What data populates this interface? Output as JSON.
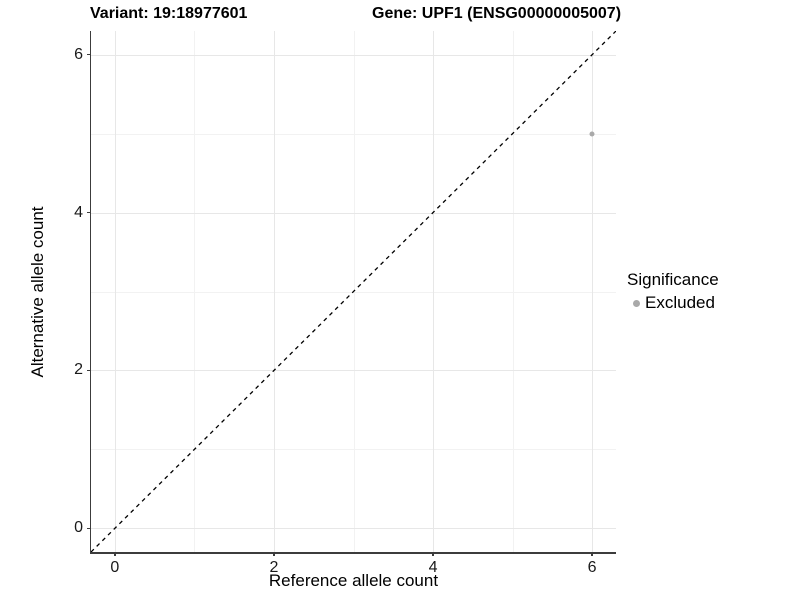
{
  "chart_data": {
    "type": "scatter",
    "title_left": "Variant: 19:18977601",
    "title_right": "Gene: UPF1 (ENSG00000005007)",
    "xlabel": "Reference allele count",
    "ylabel": "Alternative allele count",
    "xlim": [
      -0.3,
      6.3
    ],
    "ylim": [
      -0.3,
      6.3
    ],
    "x_ticks": [
      0,
      2,
      4,
      6
    ],
    "y_ticks": [
      0,
      2,
      4,
      6
    ],
    "x_minor_ticks": [
      1,
      3,
      5
    ],
    "y_minor_ticks": [
      1,
      3,
      5
    ],
    "grid": true,
    "points": [
      {
        "x": 6,
        "y": 5,
        "series": "Excluded"
      }
    ],
    "reference_line": {
      "style": "dashed",
      "from": [
        -0.3,
        -0.3
      ],
      "to": [
        6.3,
        6.3
      ],
      "color": "#000000"
    },
    "legend": {
      "title": "Significance",
      "position": "right",
      "entries": [
        {
          "label": "Excluded",
          "marker_color": "#a9a9a9"
        }
      ]
    },
    "colors": {
      "point": "#a9a9a9",
      "grid_major": "#e7e7e7",
      "grid_minor": "#f2f2f2",
      "axis_line": "#3c3c3c",
      "tick_label": "#1a1a1a"
    }
  }
}
